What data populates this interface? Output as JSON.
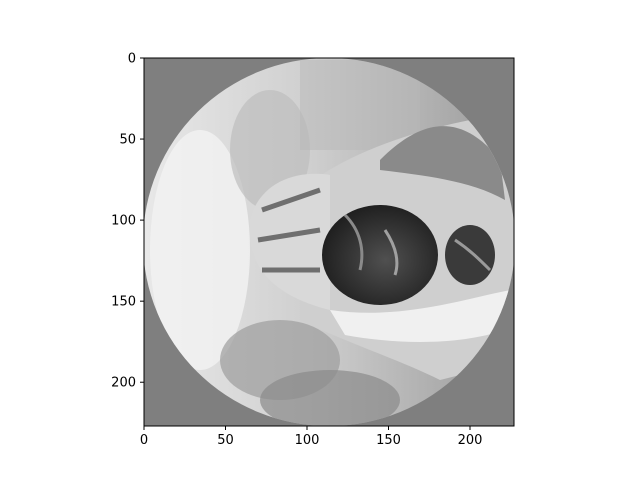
{
  "chart_data": {
    "type": "heatmap",
    "description_shown": "grayscale image inside a circular mask with gray background",
    "title": "",
    "xlabel": "",
    "ylabel": "",
    "xlim": [
      0,
      227
    ],
    "ylim": [
      227,
      0
    ],
    "x_ticks": [
      0,
      50,
      100,
      150,
      200
    ],
    "y_ticks": [
      0,
      50,
      100,
      150,
      200
    ],
    "colormap": "gray",
    "mask": "circle",
    "background_value_color": "#7f7f7f",
    "grid": false,
    "legend": "none"
  }
}
